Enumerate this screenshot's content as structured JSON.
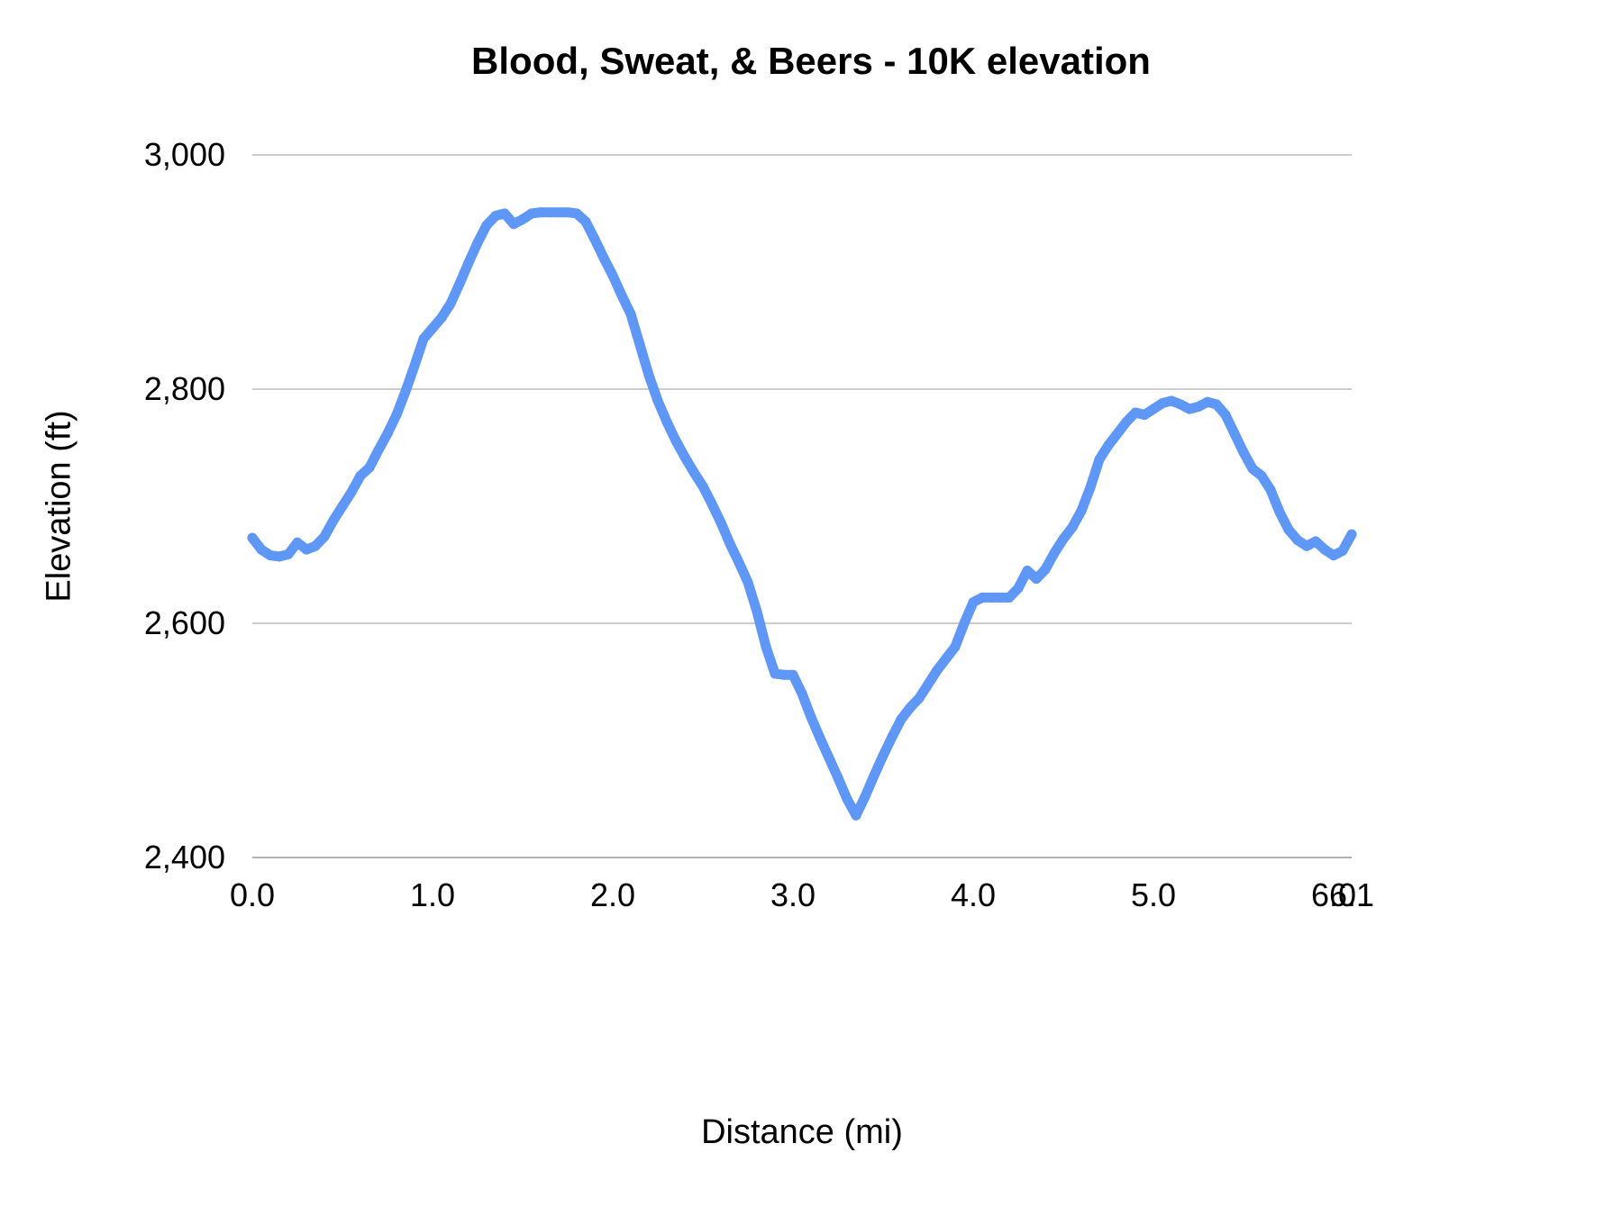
{
  "colors": {
    "series": "#5e97f6",
    "gridline": "#cccccc",
    "axis_line": "#b0b0b0",
    "tick_text": "#000000",
    "title_text": "#000000"
  },
  "chart_data": {
    "type": "scatter",
    "title": "Blood, Sweat, & Beers  - 10K elevation",
    "xlabel": "Distance (mi)",
    "ylabel": "Elevation (ft)",
    "xlim": [
      0.0,
      6.1
    ],
    "ylim": [
      2400,
      3000
    ],
    "grid": "horizontal",
    "legend": "none",
    "x_ticks": [
      {
        "value": 0.0,
        "label": "0.0"
      },
      {
        "value": 1.0,
        "label": "1.0"
      },
      {
        "value": 2.0,
        "label": "2.0"
      },
      {
        "value": 3.0,
        "label": "3.0"
      },
      {
        "value": 4.0,
        "label": "4.0"
      },
      {
        "value": 5.0,
        "label": "5.0"
      },
      {
        "value": 6.0,
        "label": "6.0"
      },
      {
        "value": 6.1,
        "label": "6.1"
      }
    ],
    "y_ticks": [
      {
        "value": 2400,
        "label": "2,400"
      },
      {
        "value": 2600,
        "label": "2,600"
      },
      {
        "value": 2800,
        "label": "2,800"
      },
      {
        "value": 3000,
        "label": "3,000"
      }
    ],
    "x_start": 0.0,
    "x_step": 0.05,
    "series": [
      {
        "name": "Elevation (ft)",
        "color": "#5e97f6",
        "values": [
          2673,
          2663,
          2658,
          2657,
          2659,
          2669,
          2663,
          2666,
          2674,
          2688,
          2700,
          2712,
          2726,
          2733,
          2748,
          2762,
          2778,
          2798,
          2820,
          2843,
          2852,
          2861,
          2873,
          2890,
          2908,
          2925,
          2940,
          2948,
          2950,
          2941,
          2945,
          2950,
          2951,
          2951,
          2951,
          2951,
          2950,
          2943,
          2928,
          2912,
          2897,
          2880,
          2864,
          2838,
          2812,
          2790,
          2772,
          2756,
          2742,
          2729,
          2717,
          2702,
          2686,
          2668,
          2652,
          2635,
          2610,
          2580,
          2557,
          2556,
          2556,
          2540,
          2520,
          2502,
          2485,
          2468,
          2450,
          2436,
          2452,
          2470,
          2487,
          2503,
          2518,
          2528,
          2536,
          2548,
          2560,
          2570,
          2580,
          2600,
          2618,
          2622,
          2622,
          2622,
          2622,
          2630,
          2645,
          2638,
          2646,
          2660,
          2672,
          2682,
          2696,
          2716,
          2740,
          2752,
          2762,
          2772,
          2780,
          2778,
          2783,
          2788,
          2790,
          2787,
          2783,
          2785,
          2789,
          2787,
          2778,
          2762,
          2746,
          2732,
          2726,
          2714,
          2695,
          2680,
          2671,
          2666,
          2670,
          2663,
          2658,
          2662,
          2676
        ]
      }
    ]
  }
}
